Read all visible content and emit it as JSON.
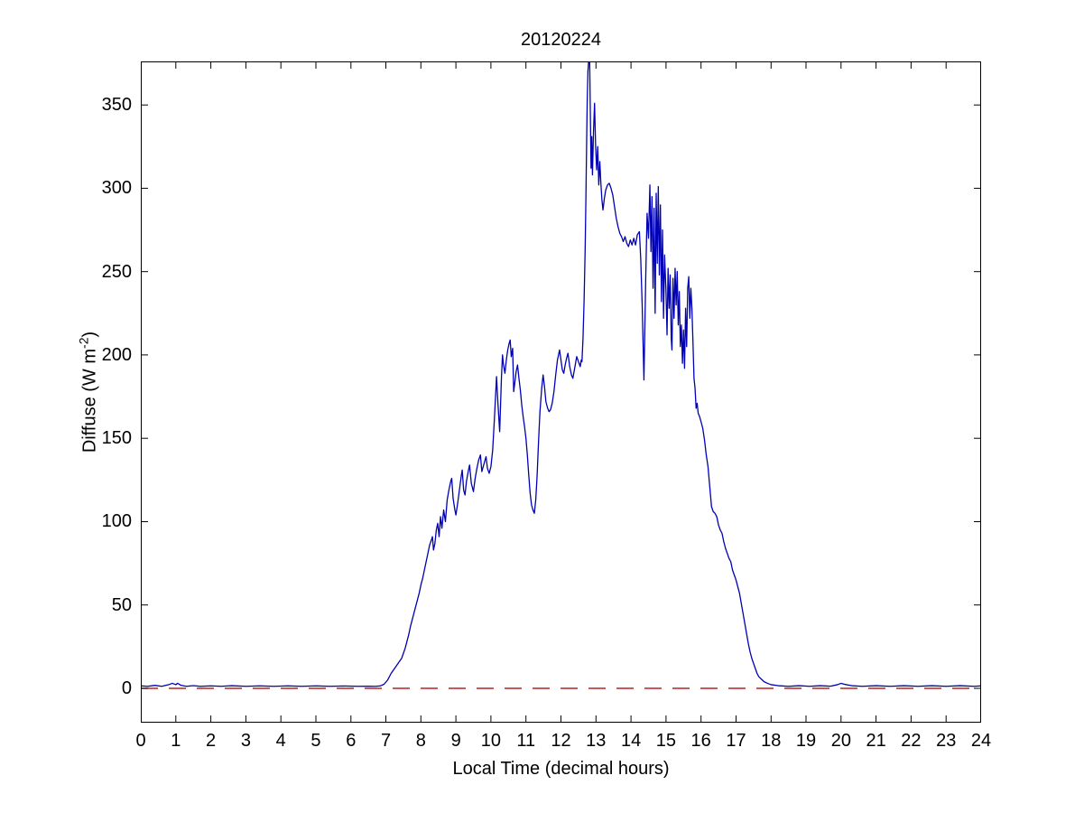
{
  "labels": {
    "ylabel_prefix": "Diffuse (W m",
    "ylabel_sup": "-2",
    "ylabel_suffix": ")"
  },
  "colors": {
    "line": "#0000B4",
    "zero_line": "#BB2222",
    "axis": "#000000",
    "background": "#FFFFFF"
  },
  "chart_data": {
    "type": "line",
    "title": "20120224",
    "xlabel": "Local Time (decimal hours)",
    "ylabel": "Diffuse (W m^-2)",
    "xlim": [
      0,
      24
    ],
    "ylim": [
      -20.6,
      376.1
    ],
    "xticks": [
      0,
      1,
      2,
      3,
      4,
      5,
      6,
      7,
      8,
      9,
      10,
      11,
      12,
      13,
      14,
      15,
      16,
      17,
      18,
      19,
      20,
      21,
      22,
      23,
      24
    ],
    "yticks": [
      0,
      50,
      100,
      150,
      200,
      250,
      300,
      350
    ],
    "grid": false,
    "legend": null,
    "series": [
      {
        "name": "diffuse-irradiance",
        "color": "#0000B4",
        "style": "solid",
        "points": [
          [
            0,
            1.5
          ],
          [
            0.2,
            1.2
          ],
          [
            0.4,
            1.8
          ],
          [
            0.6,
            1.2
          ],
          [
            0.8,
            2.2
          ],
          [
            0.9,
            3
          ],
          [
            1.0,
            2.2
          ],
          [
            1.05,
            3
          ],
          [
            1.15,
            1.8
          ],
          [
            1.3,
            1.2
          ],
          [
            1.5,
            1.6
          ],
          [
            1.7,
            1.2
          ],
          [
            2.0,
            1.5
          ],
          [
            2.3,
            1.2
          ],
          [
            2.6,
            1.6
          ],
          [
            3.0,
            1.2
          ],
          [
            3.4,
            1.5
          ],
          [
            3.8,
            1.2
          ],
          [
            4.2,
            1.5
          ],
          [
            4.6,
            1.2
          ],
          [
            5.0,
            1.5
          ],
          [
            5.4,
            1.2
          ],
          [
            5.8,
            1.4
          ],
          [
            6.2,
            1.2
          ],
          [
            6.5,
            1.3
          ],
          [
            6.7,
            1.2
          ],
          [
            6.85,
            1.5
          ],
          [
            6.95,
            2.5
          ],
          [
            7.05,
            5
          ],
          [
            7.15,
            9
          ],
          [
            7.25,
            12
          ],
          [
            7.35,
            15
          ],
          [
            7.45,
            18
          ],
          [
            7.5,
            21
          ],
          [
            7.55,
            24
          ],
          [
            7.6,
            28
          ],
          [
            7.65,
            32
          ],
          [
            7.7,
            37
          ],
          [
            7.75,
            41
          ],
          [
            7.8,
            45
          ],
          [
            7.85,
            49
          ],
          [
            7.9,
            53
          ],
          [
            7.95,
            57
          ],
          [
            8.0,
            62
          ],
          [
            8.05,
            66
          ],
          [
            8.1,
            71
          ],
          [
            8.15,
            76
          ],
          [
            8.2,
            81
          ],
          [
            8.25,
            86
          ],
          [
            8.3,
            89
          ],
          [
            8.33,
            91
          ],
          [
            8.36,
            83
          ],
          [
            8.4,
            87
          ],
          [
            8.44,
            95
          ],
          [
            8.48,
            99
          ],
          [
            8.52,
            91
          ],
          [
            8.56,
            103
          ],
          [
            8.6,
            96
          ],
          [
            8.65,
            107
          ],
          [
            8.7,
            100
          ],
          [
            8.75,
            113
          ],
          [
            8.8,
            119
          ],
          [
            8.85,
            124
          ],
          [
            8.88,
            126
          ],
          [
            8.92,
            114
          ],
          [
            8.97,
            107
          ],
          [
            9.0,
            104
          ],
          [
            9.05,
            111
          ],
          [
            9.1,
            119
          ],
          [
            9.15,
            127
          ],
          [
            9.18,
            131
          ],
          [
            9.22,
            119
          ],
          [
            9.26,
            116
          ],
          [
            9.3,
            124
          ],
          [
            9.35,
            130
          ],
          [
            9.39,
            134
          ],
          [
            9.44,
            123
          ],
          [
            9.5,
            118
          ],
          [
            9.55,
            126
          ],
          [
            9.6,
            132
          ],
          [
            9.65,
            137
          ],
          [
            9.7,
            140
          ],
          [
            9.74,
            130
          ],
          [
            9.78,
            133
          ],
          [
            9.82,
            136
          ],
          [
            9.86,
            139
          ],
          [
            9.9,
            132
          ],
          [
            9.95,
            129
          ],
          [
            10.0,
            133
          ],
          [
            10.05,
            143
          ],
          [
            10.1,
            162
          ],
          [
            10.16,
            187
          ],
          [
            10.2,
            171
          ],
          [
            10.25,
            154
          ],
          [
            10.3,
            186
          ],
          [
            10.33,
            200
          ],
          [
            10.36,
            194
          ],
          [
            10.4,
            189
          ],
          [
            10.44,
            197
          ],
          [
            10.48,
            203
          ],
          [
            10.52,
            207
          ],
          [
            10.55,
            209
          ],
          [
            10.58,
            199
          ],
          [
            10.62,
            204
          ],
          [
            10.65,
            178
          ],
          [
            10.68,
            183
          ],
          [
            10.72,
            190
          ],
          [
            10.76,
            194
          ],
          [
            10.8,
            186
          ],
          [
            10.84,
            179
          ],
          [
            10.88,
            170
          ],
          [
            10.92,
            163
          ],
          [
            10.96,
            157
          ],
          [
            11.0,
            150
          ],
          [
            11.04,
            140
          ],
          [
            11.08,
            128
          ],
          [
            11.12,
            117
          ],
          [
            11.16,
            110
          ],
          [
            11.2,
            107
          ],
          [
            11.24,
            105
          ],
          [
            11.28,
            113
          ],
          [
            11.32,
            128
          ],
          [
            11.36,
            148
          ],
          [
            11.4,
            166
          ],
          [
            11.45,
            180
          ],
          [
            11.49,
            188
          ],
          [
            11.53,
            181
          ],
          [
            11.57,
            172
          ],
          [
            11.62,
            168
          ],
          [
            11.66,
            166
          ],
          [
            11.7,
            167
          ],
          [
            11.75,
            171
          ],
          [
            11.8,
            178
          ],
          [
            11.85,
            188
          ],
          [
            11.9,
            197
          ],
          [
            11.96,
            203
          ],
          [
            12.0,
            197
          ],
          [
            12.04,
            191
          ],
          [
            12.08,
            189
          ],
          [
            12.12,
            194
          ],
          [
            12.16,
            198
          ],
          [
            12.2,
            201
          ],
          [
            12.25,
            193
          ],
          [
            12.3,
            188
          ],
          [
            12.34,
            186
          ],
          [
            12.4,
            193
          ],
          [
            12.45,
            199
          ],
          [
            12.5,
            196
          ],
          [
            12.55,
            193
          ],
          [
            12.58,
            197
          ],
          [
            12.6,
            196
          ],
          [
            12.63,
            210
          ],
          [
            12.66,
            232
          ],
          [
            12.69,
            262
          ],
          [
            12.71,
            290
          ],
          [
            12.73,
            322
          ],
          [
            12.75,
            352
          ],
          [
            12.77,
            370
          ],
          [
            12.79,
            376
          ],
          [
            12.82,
            376
          ],
          [
            12.84,
            344
          ],
          [
            12.86,
            312
          ],
          [
            12.88,
            331
          ],
          [
            12.9,
            308
          ],
          [
            12.93,
            334
          ],
          [
            12.96,
            351
          ],
          [
            12.99,
            325
          ],
          [
            13.02,
            311
          ],
          [
            13.05,
            325
          ],
          [
            13.08,
            302
          ],
          [
            13.11,
            316
          ],
          [
            13.14,
            303
          ],
          [
            13.17,
            293
          ],
          [
            13.2,
            287
          ],
          [
            13.24,
            294
          ],
          [
            13.28,
            299
          ],
          [
            13.33,
            302
          ],
          [
            13.38,
            303
          ],
          [
            13.43,
            300
          ],
          [
            13.48,
            296
          ],
          [
            13.53,
            289
          ],
          [
            13.58,
            282
          ],
          [
            13.63,
            277
          ],
          [
            13.68,
            273
          ],
          [
            13.73,
            271
          ],
          [
            13.78,
            268
          ],
          [
            13.83,
            271
          ],
          [
            13.88,
            267
          ],
          [
            13.93,
            265
          ],
          [
            13.98,
            269
          ],
          [
            14.03,
            266
          ],
          [
            14.08,
            270
          ],
          [
            14.13,
            266
          ],
          [
            14.18,
            272
          ],
          [
            14.24,
            274
          ],
          [
            14.28,
            257
          ],
          [
            14.32,
            230
          ],
          [
            14.37,
            185
          ],
          [
            14.42,
            245
          ],
          [
            14.46,
            285
          ],
          [
            14.5,
            270
          ],
          [
            14.54,
            302
          ],
          [
            14.57,
            262
          ],
          [
            14.6,
            295
          ],
          [
            14.63,
            240
          ],
          [
            14.66,
            288
          ],
          [
            14.69,
            225
          ],
          [
            14.72,
            297
          ],
          [
            14.75,
            255
          ],
          [
            14.78,
            301
          ],
          [
            14.81,
            248
          ],
          [
            14.84,
            290
          ],
          [
            14.87,
            232
          ],
          [
            14.9,
            275
          ],
          [
            14.93,
            222
          ],
          [
            14.96,
            260
          ],
          [
            15.0,
            238
          ],
          [
            15.03,
            212
          ],
          [
            15.06,
            252
          ],
          [
            15.09,
            228
          ],
          [
            15.12,
            248
          ],
          [
            15.15,
            210
          ],
          [
            15.17,
            203
          ],
          [
            15.2,
            246
          ],
          [
            15.23,
            222
          ],
          [
            15.26,
            252
          ],
          [
            15.29,
            230
          ],
          [
            15.32,
            250
          ],
          [
            15.35,
            218
          ],
          [
            15.38,
            238
          ],
          [
            15.41,
            205
          ],
          [
            15.44,
            218
          ],
          [
            15.47,
            195
          ],
          [
            15.5,
            215
          ],
          [
            15.53,
            192
          ],
          [
            15.56,
            228
          ],
          [
            15.59,
            205
          ],
          [
            15.62,
            240
          ],
          [
            15.65,
            247
          ],
          [
            15.68,
            222
          ],
          [
            15.71,
            240
          ],
          [
            15.74,
            228
          ],
          [
            15.77,
            208
          ],
          [
            15.8,
            186
          ],
          [
            15.83,
            180
          ],
          [
            15.86,
            168
          ],
          [
            15.89,
            171
          ],
          [
            15.92,
            165
          ],
          [
            15.96,
            163
          ],
          [
            16.0,
            160
          ],
          [
            16.05,
            156
          ],
          [
            16.1,
            149
          ],
          [
            16.15,
            140
          ],
          [
            16.2,
            133
          ],
          [
            16.25,
            121
          ],
          [
            16.3,
            109
          ],
          [
            16.35,
            106
          ],
          [
            16.4,
            105
          ],
          [
            16.45,
            103
          ],
          [
            16.5,
            98
          ],
          [
            16.55,
            95
          ],
          [
            16.6,
            93
          ],
          [
            16.65,
            88
          ],
          [
            16.7,
            84
          ],
          [
            16.75,
            81
          ],
          [
            16.8,
            78
          ],
          [
            16.85,
            76
          ],
          [
            16.9,
            71
          ],
          [
            16.95,
            68
          ],
          [
            17.0,
            65
          ],
          [
            17.05,
            61
          ],
          [
            17.1,
            57
          ],
          [
            17.15,
            51
          ],
          [
            17.2,
            45
          ],
          [
            17.25,
            39
          ],
          [
            17.3,
            33
          ],
          [
            17.35,
            27
          ],
          [
            17.4,
            22
          ],
          [
            17.45,
            18
          ],
          [
            17.5,
            15
          ],
          [
            17.55,
            12
          ],
          [
            17.6,
            9
          ],
          [
            17.65,
            7
          ],
          [
            17.7,
            6
          ],
          [
            17.75,
            5
          ],
          [
            17.8,
            4
          ],
          [
            17.9,
            3
          ],
          [
            18.0,
            2.2
          ],
          [
            18.2,
            1.6
          ],
          [
            18.5,
            1.2
          ],
          [
            18.8,
            1.6
          ],
          [
            19.1,
            1.2
          ],
          [
            19.4,
            1.6
          ],
          [
            19.7,
            1.3
          ],
          [
            19.9,
            2.2
          ],
          [
            20.0,
            3
          ],
          [
            20.1,
            2.4
          ],
          [
            20.3,
            1.6
          ],
          [
            20.6,
            1.2
          ],
          [
            21.0,
            1.6
          ],
          [
            21.4,
            1.2
          ],
          [
            21.8,
            1.6
          ],
          [
            22.2,
            1.2
          ],
          [
            22.6,
            1.6
          ],
          [
            23.0,
            1.2
          ],
          [
            23.4,
            1.6
          ],
          [
            23.8,
            1.2
          ],
          [
            24.0,
            1.5
          ]
        ]
      },
      {
        "name": "zero-reference",
        "color": "#BB2222",
        "style": "dashed",
        "points": [
          [
            0,
            0
          ],
          [
            24,
            0
          ]
        ]
      }
    ]
  }
}
